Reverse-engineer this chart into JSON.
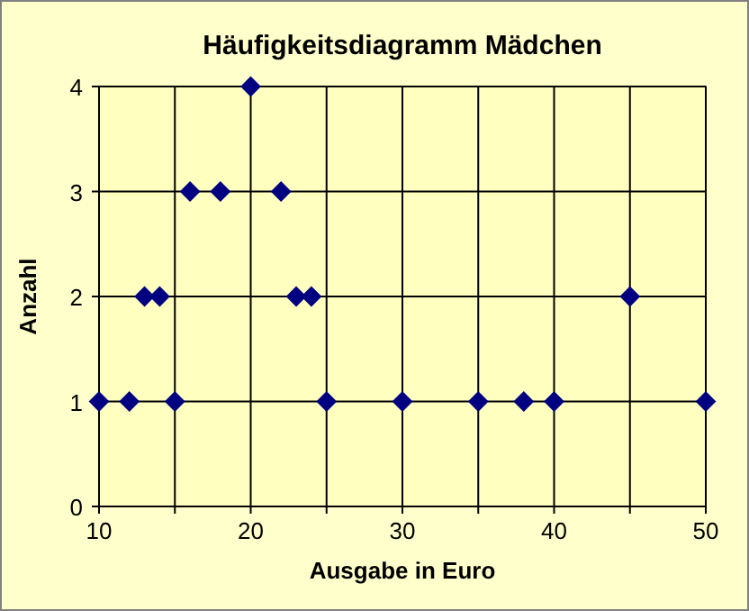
{
  "chart_data": {
    "type": "scatter",
    "title": "Häufigkeitsdiagramm Mädchen",
    "xlabel": "Ausgabe in Euro",
    "ylabel": "Anzahl",
    "x": [
      10,
      12,
      13,
      14,
      15,
      16,
      18,
      20,
      22,
      23,
      24,
      25,
      30,
      35,
      38,
      40,
      45,
      50
    ],
    "series": [
      {
        "color": "#000080",
        "values": [
          1,
          1,
          2,
          2,
          1,
          3,
          3,
          4,
          3,
          2,
          2,
          1,
          1,
          1,
          1,
          1,
          2,
          1
        ]
      }
    ],
    "xlim": [
      10,
      50
    ],
    "xticks": [
      10,
      {
        "value": 15,
        "label": null
      },
      20,
      {
        "value": 25,
        "label": null
      },
      30,
      {
        "value": 35,
        "label": null
      },
      40,
      {
        "value": 45,
        "label": null
      },
      50
    ],
    "ylim": [
      0,
      4
    ],
    "yticks": [
      0,
      1,
      2,
      3,
      4
    ],
    "grid": true,
    "marker": "diamond"
  }
}
